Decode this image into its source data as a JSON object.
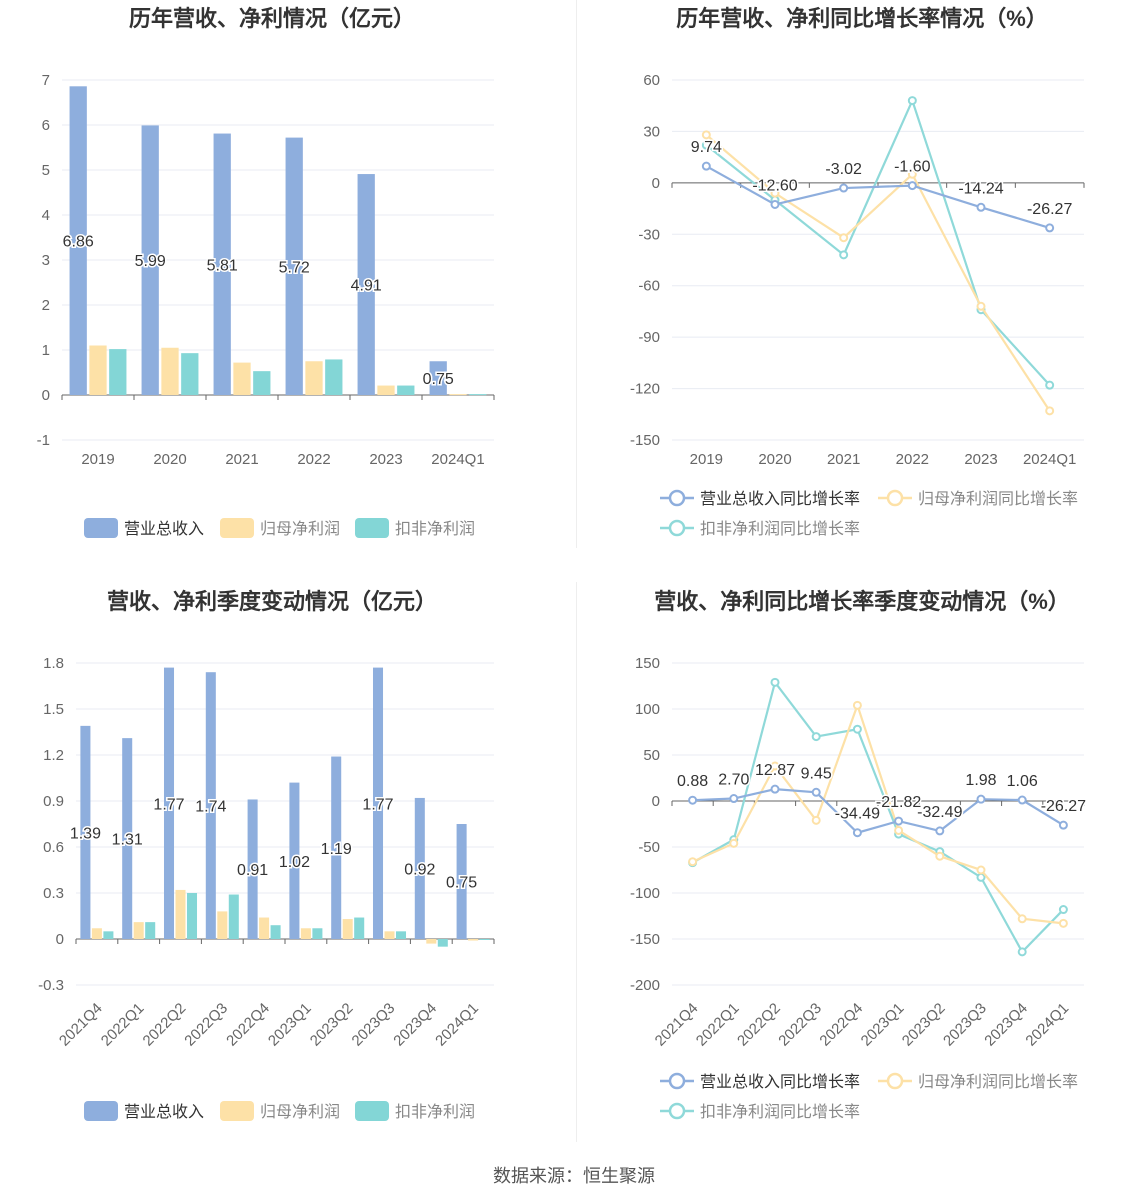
{
  "colors": {
    "revenue": "#8eaedd",
    "net": "#fde1a7",
    "deducted": "#83d6d6",
    "grid": "#e8ebf3",
    "axis": "#666",
    "text": "#333"
  },
  "source": "数据来源：恒生聚源",
  "chart_data": [
    {
      "type": "bar",
      "title": "历年营收、净利情况（亿元）",
      "categories": [
        "2019",
        "2020",
        "2021",
        "2022",
        "2023",
        "2024Q1"
      ],
      "ylim": [
        -1,
        7
      ],
      "yticks": [
        "7",
        "6",
        "5",
        "4",
        "3",
        "2",
        "1",
        "0",
        "-1"
      ],
      "series": [
        {
          "name": "营业总收入",
          "values": [
            6.86,
            5.99,
            5.81,
            5.72,
            4.91,
            0.75
          ],
          "labels": [
            "6.86",
            "5.99",
            "5.81",
            "5.72",
            "4.91",
            "0.75"
          ]
        },
        {
          "name": "归母净利润",
          "values": [
            1.1,
            1.05,
            0.72,
            0.75,
            0.21,
            0.02
          ]
        },
        {
          "name": "扣非净利润",
          "values": [
            1.02,
            0.93,
            0.53,
            0.79,
            0.21,
            0.02
          ]
        }
      ],
      "legend_position": "bottom"
    },
    {
      "type": "line",
      "title": "历年营收、净利同比增长率情况（%）",
      "categories": [
        "2019",
        "2020",
        "2021",
        "2022",
        "2023",
        "2024Q1"
      ],
      "ylim": [
        -150,
        60
      ],
      "yticks": [
        "60",
        "30",
        "0",
        "-30",
        "-60",
        "-90",
        "-120",
        "-150"
      ],
      "series": [
        {
          "name": "营业总收入同比增长率",
          "values": [
            9.74,
            -12.6,
            -3.02,
            -1.6,
            -14.24,
            -26.27
          ],
          "labels": [
            "9.74",
            "-12.60",
            "-3.02",
            "-1.60",
            "-14.24",
            "-26.27"
          ]
        },
        {
          "name": "归母净利润同比增长率",
          "values": [
            28,
            -6,
            -32,
            5,
            -72,
            -133
          ]
        },
        {
          "name": "扣非净利润同比增长率",
          "values": [
            22,
            -10,
            -42,
            48,
            -74,
            -118
          ]
        }
      ],
      "legend_position": "bottom"
    },
    {
      "type": "bar",
      "title": "营收、净利季度变动情况（亿元）",
      "categories": [
        "2021Q4",
        "2022Q1",
        "2022Q2",
        "2022Q3",
        "2022Q4",
        "2023Q1",
        "2023Q2",
        "2023Q3",
        "2023Q4",
        "2024Q1"
      ],
      "ylim": [
        -0.3,
        1.8
      ],
      "yticks": [
        "1.8",
        "1.5",
        "1.2",
        "0.9",
        "0.6",
        "0.3",
        "0",
        "-0.3"
      ],
      "series": [
        {
          "name": "营业总收入",
          "values": [
            1.39,
            1.31,
            1.77,
            1.74,
            0.91,
            1.02,
            1.19,
            1.77,
            0.92,
            0.75
          ],
          "labels": [
            "1.39",
            "1.31",
            "1.77",
            "1.74",
            "0.91",
            "1.02",
            "1.19",
            "1.77",
            "0.92",
            "0.75"
          ]
        },
        {
          "name": "归母净利润",
          "values": [
            0.07,
            0.11,
            0.32,
            0.18,
            0.14,
            0.07,
            0.13,
            0.05,
            -0.03,
            -0.01
          ]
        },
        {
          "name": "扣非净利润",
          "values": [
            0.05,
            0.11,
            0.3,
            0.29,
            0.09,
            0.07,
            0.14,
            0.05,
            -0.05,
            0.0
          ]
        }
      ],
      "legend_position": "bottom"
    },
    {
      "type": "line",
      "title": "营收、净利同比增长率季度变动情况（%）",
      "categories": [
        "2021Q4",
        "2022Q1",
        "2022Q2",
        "2022Q3",
        "2022Q4",
        "2023Q1",
        "2023Q2",
        "2023Q3",
        "2023Q4",
        "2024Q1"
      ],
      "ylim": [
        -200,
        150
      ],
      "yticks": [
        "150",
        "100",
        "50",
        "0",
        "-50",
        "-100",
        "-150",
        "-200"
      ],
      "series": [
        {
          "name": "营业总收入同比增长率",
          "values": [
            0.88,
            2.7,
            12.87,
            9.45,
            -34.49,
            -21.82,
            -32.49,
            1.98,
            1.06,
            -26.27
          ],
          "labels": [
            "0.88",
            "2.70",
            "12.87",
            "9.45",
            "-34.49",
            "-21.82",
            "-32.49",
            "1.98",
            "1.06",
            "-26.27"
          ]
        },
        {
          "name": "归母净利润同比增长率",
          "values": [
            -66,
            -46,
            38,
            -21,
            104,
            -32,
            -60,
            -75,
            -128,
            -133
          ]
        },
        {
          "name": "扣非净利润同比增长率",
          "values": [
            -67,
            -42,
            129,
            70,
            78,
            -36,
            -55,
            -83,
            -164,
            -118
          ]
        }
      ],
      "legend_position": "bottom"
    }
  ]
}
